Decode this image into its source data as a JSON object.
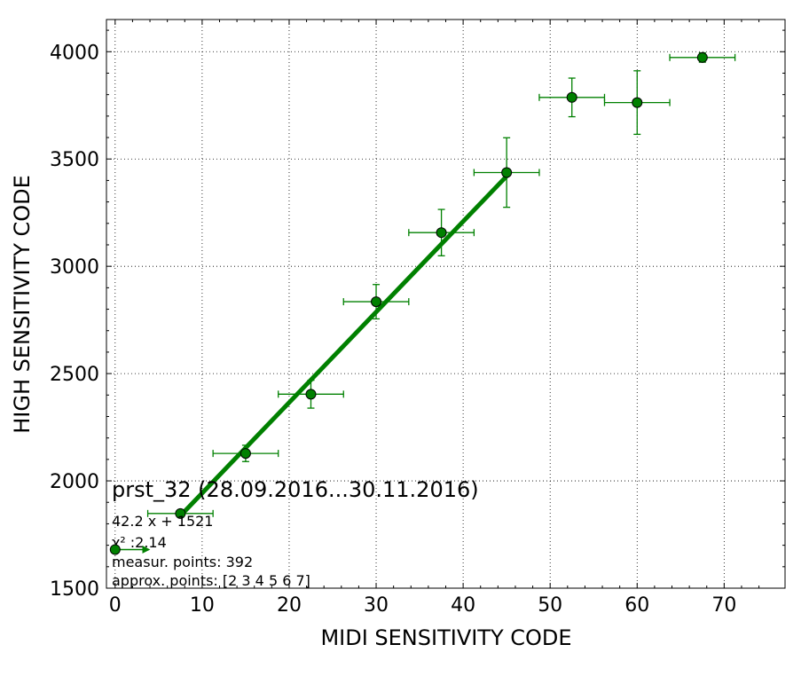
{
  "chart_data": {
    "type": "scatter",
    "title": "",
    "xlabel": "MIDI SENSITIVITY CODE",
    "ylabel": "HIGH SENSITIVITY CODE",
    "xlim": [
      -1,
      77
    ],
    "ylim": [
      1500,
      4150
    ],
    "xticks": [
      0,
      10,
      20,
      30,
      40,
      50,
      60,
      70
    ],
    "yticks": [
      1500,
      2000,
      2500,
      3000,
      3500,
      4000
    ],
    "xtick_labels": [
      "0",
      "10",
      "20",
      "30",
      "40",
      "50",
      "60",
      "70"
    ],
    "ytick_labels": [
      "1500",
      "2000",
      "2500",
      "3000",
      "3500",
      "4000"
    ],
    "grid": true,
    "color": "#008000",
    "series": [
      {
        "type": "errorbar",
        "points": [
          {
            "x": 7.5,
            "y": 1848,
            "xerr": 3.75,
            "yerr": 5
          },
          {
            "x": 15.0,
            "y": 2128,
            "xerr": 3.75,
            "yerr": 38
          },
          {
            "x": 22.5,
            "y": 2404,
            "xerr": 3.75,
            "yerr": 65
          },
          {
            "x": 30.0,
            "y": 2835,
            "xerr": 3.75,
            "yerr": 80
          },
          {
            "x": 37.5,
            "y": 3157,
            "xerr": 3.75,
            "yerr": 108
          },
          {
            "x": 45.0,
            "y": 3437,
            "xerr": 3.75,
            "yerr": 162
          },
          {
            "x": 52.5,
            "y": 3787,
            "xerr": 3.75,
            "yerr": 90
          },
          {
            "x": 60.0,
            "y": 3763,
            "xerr": 3.75,
            "yerr": 148
          },
          {
            "x": 67.5,
            "y": 3973,
            "xerr": 3.75,
            "yerr": 22
          }
        ]
      },
      {
        "type": "fit_line",
        "slope": 42.2,
        "intercept": 1521,
        "x_range": [
          7.5,
          45
        ]
      }
    ],
    "annotations": {
      "title_text": "prst_32 (28.09.2016...30.11.2016)",
      "fit_text": "42.2 x + 1521",
      "chi_text": "χ² :2.14",
      "measur_text": "measur. points: 392",
      "approx_text": "approx. points: [2 3 4 5 6 7]"
    },
    "legend": {
      "position": "bottom-left",
      "marker_x": 0,
      "marker_y": 1680
    }
  }
}
